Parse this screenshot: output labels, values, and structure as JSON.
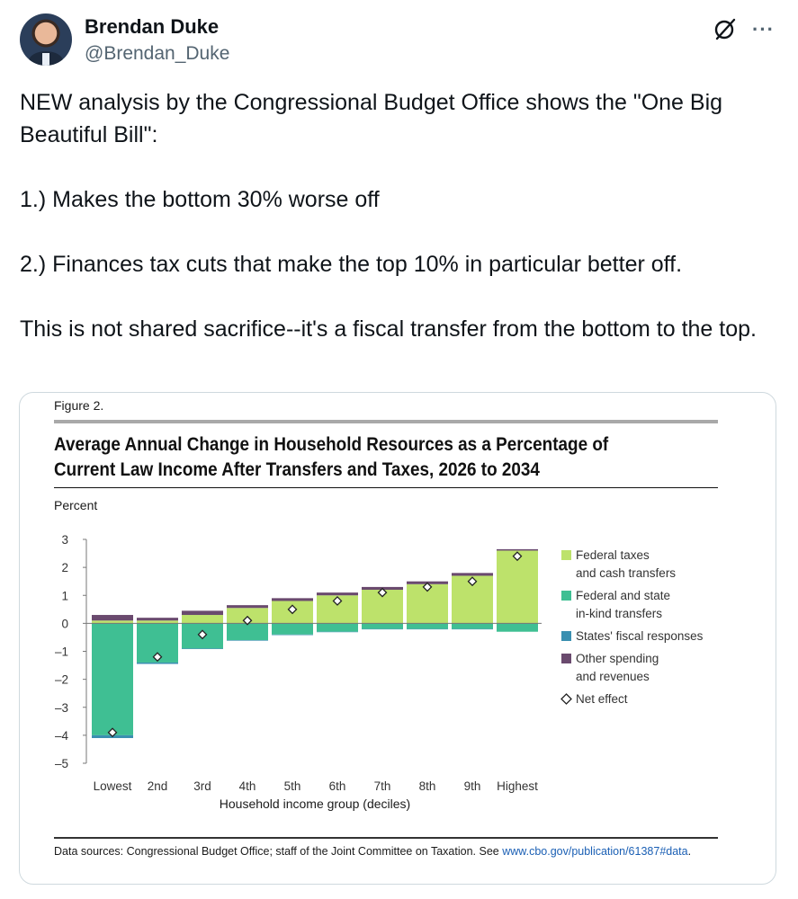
{
  "tweet": {
    "author_name": "Brendan Duke",
    "author_handle": "@Brendan_Duke",
    "more_label": "···",
    "paragraphs": [
      "NEW analysis by the Congressional Budget Office shows the \"One Big Beautiful Bill\":",
      "1.) Makes the bottom 30% worse off",
      "2.) Finances tax cuts that make the top 10% in particular better off.",
      "This is not shared sacrifice--it's a fiscal transfer from the bottom to the top."
    ]
  },
  "figure": {
    "label": "Figure 2.",
    "title": "Average Annual Change in Household Resources as a Percentage of Current Law Income After Transfers and Taxes, 2026 to 2034",
    "source_text": "Data sources: Congressional Budget Office; staff of the Joint Committee on Taxation. See ",
    "source_link": "www.cbo.gov/publication/61387#data",
    "source_end": "."
  },
  "chart_data": {
    "type": "bar",
    "stacked": true,
    "ylabel": "Percent",
    "xlabel": "Household income group (deciles)",
    "ylim": [
      -5,
      3
    ],
    "yticks": [
      3,
      2,
      1,
      0,
      -1,
      -2,
      -3,
      -4,
      -5
    ],
    "ytick_labels": [
      "3",
      "2",
      "1",
      "0",
      "–1",
      "–2",
      "–3",
      "–4",
      "–5"
    ],
    "categories": [
      "Lowest",
      "2nd",
      "3rd",
      "4th",
      "5th",
      "6th",
      "7th",
      "8th",
      "9th",
      "Highest"
    ],
    "grid": false,
    "legend_position": "right",
    "series": [
      {
        "name": "Federal taxes and cash transfers",
        "legend_lines": [
          "Federal taxes",
          "and cash transfers"
        ],
        "color": "#bde26b",
        "values": [
          0.1,
          0.1,
          0.3,
          0.55,
          0.8,
          1.0,
          1.2,
          1.4,
          1.7,
          2.6
        ]
      },
      {
        "name": "Federal and state in-kind transfers",
        "legend_lines": [
          "Federal and state",
          "in-kind transfers"
        ],
        "color": "#3fbf93",
        "values": [
          -4.0,
          -1.4,
          -0.9,
          -0.6,
          -0.4,
          -0.3,
          -0.2,
          -0.2,
          -0.2,
          -0.3
        ]
      },
      {
        "name": "States' fiscal responses",
        "legend_lines": [
          "States' fiscal responses"
        ],
        "color": "#3a8fb0",
        "values": [
          -0.1,
          -0.05,
          -0.02,
          -0.02,
          -0.02,
          -0.01,
          -0.01,
          -0.01,
          -0.01,
          0
        ]
      },
      {
        "name": "Other spending and revenues",
        "legend_lines": [
          "Other spending",
          "and revenues"
        ],
        "color": "#6a4a6e",
        "values": [
          0.2,
          0.1,
          0.15,
          0.1,
          0.1,
          0.1,
          0.1,
          0.1,
          0.1,
          0.05
        ]
      }
    ],
    "net_effect": {
      "name": "Net effect",
      "values": [
        -3.9,
        -1.2,
        -0.4,
        0.1,
        0.5,
        0.8,
        1.1,
        1.3,
        1.5,
        2.4
      ]
    }
  },
  "colors": {
    "accent_text": "#0f1419",
    "secondary_text": "#536471",
    "link": "#1a5fb4"
  },
  "icons": {
    "grok": "grok-icon",
    "more": "more-icon"
  }
}
